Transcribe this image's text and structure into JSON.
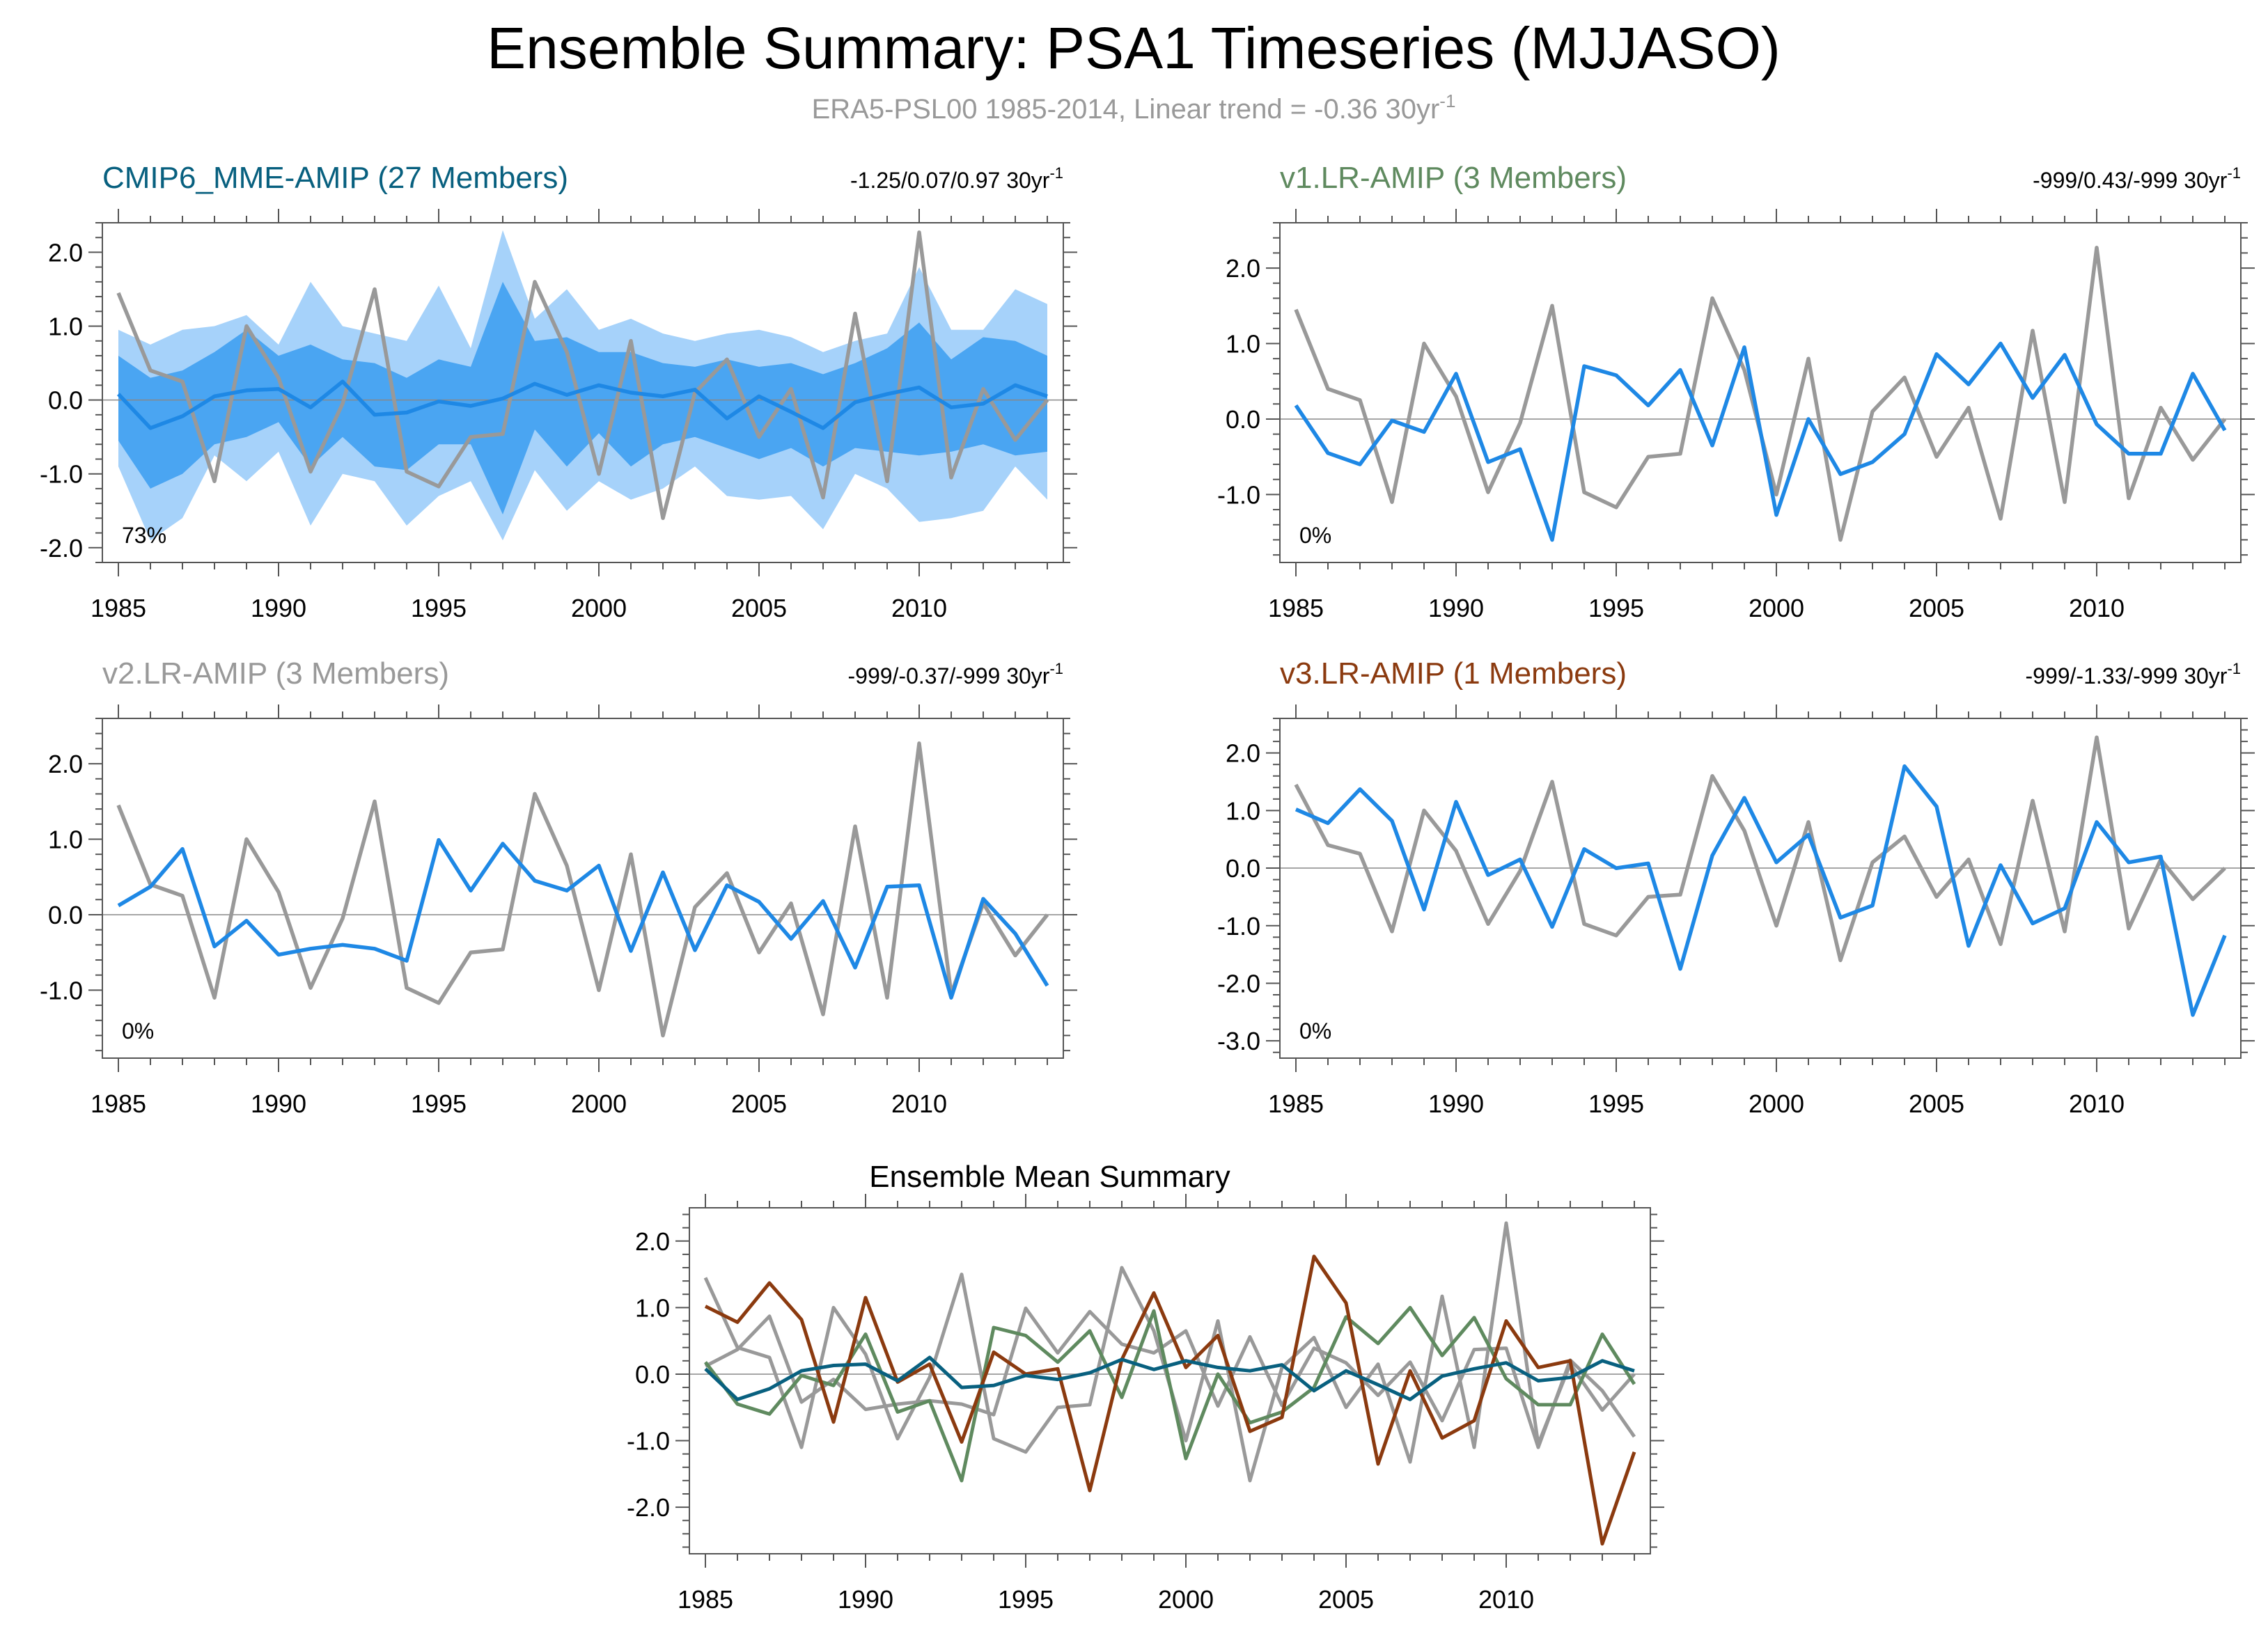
{
  "title": "Ensemble Summary: PSA1 Timeseries (MJJASO)",
  "subtitle": {
    "main": "ERA5-PSL00 1985-2014, Linear trend = -0.36 30yr",
    "sup": "-1"
  },
  "colors": {
    "obs": "#999999",
    "model": "#1e88e5",
    "mme": "#08607f",
    "v1": "#5f8a5f",
    "v2": "#999999",
    "v3": "#8b3a0f",
    "band_outer": "#a6d2fa",
    "band_inner": "#4aa5f2",
    "axis": "#555555",
    "text": "#000000"
  },
  "chart_data": [
    {
      "id": "cmip6",
      "type": "line",
      "title": "CMIP6_MME-AMIP (27 Members)",
      "title_color": "#08607f",
      "trend_text": "-1.25/0.07/0.97 30yr",
      "trend_sup": "-1",
      "pct_label": "73%",
      "ylim": [
        -2.2,
        2.4
      ],
      "yticks": [
        -2.0,
        -1.0,
        0.0,
        1.0,
        2.0
      ],
      "xticks": [
        1985,
        1990,
        1995,
        2000,
        2005,
        2010
      ],
      "xlim": [
        1984.5,
        2014.5
      ],
      "x": [
        1985,
        1986,
        1987,
        1988,
        1989,
        1990,
        1991,
        1992,
        1993,
        1994,
        1995,
        1996,
        1997,
        1998,
        1999,
        2000,
        2001,
        2002,
        2003,
        2004,
        2005,
        2006,
        2007,
        2008,
        2009,
        2010,
        2011,
        2012,
        2013,
        2014
      ],
      "band_outer_upper": [
        0.95,
        0.75,
        0.95,
        1.0,
        1.15,
        0.75,
        1.6,
        1.0,
        0.9,
        0.8,
        1.55,
        0.7,
        2.3,
        1.1,
        1.5,
        0.95,
        1.1,
        0.9,
        0.8,
        0.9,
        0.95,
        0.85,
        0.65,
        0.8,
        0.9,
        1.8,
        0.95,
        0.95,
        1.5,
        1.3
      ],
      "band_outer_lower": [
        -0.9,
        -1.9,
        -1.6,
        -0.75,
        -1.1,
        -0.7,
        -1.7,
        -1.0,
        -1.1,
        -1.7,
        -1.3,
        -1.1,
        -1.9,
        -0.95,
        -1.5,
        -1.1,
        -1.35,
        -1.2,
        -0.9,
        -1.3,
        -1.35,
        -1.3,
        -1.75,
        -1.0,
        -1.2,
        -1.65,
        -1.6,
        -1.5,
        -0.9,
        -1.35
      ],
      "band_inner_upper": [
        0.6,
        0.3,
        0.4,
        0.65,
        0.95,
        0.6,
        0.75,
        0.55,
        0.5,
        0.3,
        0.55,
        0.45,
        1.6,
        0.8,
        0.85,
        0.65,
        0.65,
        0.5,
        0.45,
        0.55,
        0.45,
        0.5,
        0.35,
        0.5,
        0.7,
        1.05,
        0.55,
        0.85,
        0.8,
        0.6
      ],
      "band_inner_lower": [
        -0.55,
        -1.2,
        -1.0,
        -0.6,
        -0.5,
        -0.3,
        -0.9,
        -0.5,
        -0.9,
        -0.95,
        -0.6,
        -0.6,
        -1.55,
        -0.4,
        -0.9,
        -0.45,
        -0.9,
        -0.6,
        -0.5,
        -0.65,
        -0.8,
        -0.65,
        -0.9,
        -0.65,
        -0.7,
        -0.75,
        -0.7,
        -0.6,
        -0.75,
        -0.7
      ],
      "series": [
        {
          "name": "ERA5-PSL00",
          "color": "#999999",
          "values": [
            1.45,
            0.4,
            0.25,
            -1.1,
            1.0,
            0.3,
            -0.97,
            -0.05,
            1.5,
            -0.97,
            -1.17,
            -0.5,
            -0.46,
            1.6,
            0.65,
            -1.0,
            0.8,
            -1.6,
            0.1,
            0.55,
            -0.5,
            0.15,
            -1.32,
            1.17,
            -1.1,
            2.27,
            -1.05,
            0.15,
            -0.54,
            0.0
          ]
        },
        {
          "name": "CMIP6_MME-AMIP",
          "color": "#1e88e5",
          "values": [
            0.08,
            -0.38,
            -0.22,
            0.05,
            0.13,
            0.15,
            -0.1,
            0.25,
            -0.2,
            -0.17,
            -0.02,
            -0.08,
            0.02,
            0.22,
            0.07,
            0.2,
            0.1,
            0.05,
            0.14,
            -0.25,
            0.05,
            -0.16,
            -0.38,
            -0.03,
            0.08,
            0.17,
            -0.1,
            -0.05,
            0.2,
            0.05
          ]
        }
      ]
    },
    {
      "id": "v1",
      "type": "line",
      "title": "v1.LR-AMIP (3 Members)",
      "title_color": "#5f8a5f",
      "trend_text": "-999/0.43/-999 30yr",
      "trend_sup": "-1",
      "pct_label": "0%",
      "ylim": [
        -1.9,
        2.6
      ],
      "yticks": [
        -1.0,
        0.0,
        1.0,
        2.0
      ],
      "xticks": [
        1985,
        1990,
        1995,
        2000,
        2005,
        2010
      ],
      "xlim": [
        1984.5,
        2014.5
      ],
      "x": [
        1985,
        1986,
        1987,
        1988,
        1989,
        1990,
        1991,
        1992,
        1993,
        1994,
        1995,
        1996,
        1997,
        1998,
        1999,
        2000,
        2001,
        2002,
        2003,
        2004,
        2005,
        2006,
        2007,
        2008,
        2009,
        2010,
        2011,
        2012,
        2013,
        2014
      ],
      "series": [
        {
          "name": "ERA5-PSL00",
          "color": "#999999",
          "values": [
            1.45,
            0.4,
            0.25,
            -1.1,
            1.0,
            0.3,
            -0.97,
            -0.05,
            1.5,
            -0.97,
            -1.17,
            -0.5,
            -0.46,
            1.6,
            0.65,
            -1.0,
            0.8,
            -1.6,
            0.1,
            0.55,
            -0.5,
            0.15,
            -1.32,
            1.17,
            -1.1,
            2.27,
            -1.05,
            0.15,
            -0.54,
            0.0
          ]
        },
        {
          "name": "v1.LR-AMIP",
          "color": "#1e88e5",
          "values": [
            0.18,
            -0.45,
            -0.6,
            -0.02,
            -0.17,
            0.6,
            -0.57,
            -0.4,
            -1.6,
            0.7,
            0.58,
            0.18,
            0.65,
            -0.35,
            0.95,
            -1.27,
            0.0,
            -0.73,
            -0.57,
            -0.2,
            0.86,
            0.46,
            1.0,
            0.28,
            0.85,
            -0.07,
            -0.46,
            -0.46,
            0.6,
            -0.15
          ]
        }
      ]
    },
    {
      "id": "v2",
      "type": "line",
      "title": "v2.LR-AMIP (3 Members)",
      "title_color": "#999999",
      "trend_text": "-999/-0.37/-999 30yr",
      "trend_sup": "-1",
      "pct_label": "0%",
      "ylim": [
        -1.9,
        2.6
      ],
      "yticks": [
        -1.0,
        0.0,
        1.0,
        2.0
      ],
      "xticks": [
        1985,
        1990,
        1995,
        2000,
        2005,
        2010
      ],
      "xlim": [
        1984.5,
        2014.5
      ],
      "x": [
        1985,
        1986,
        1987,
        1988,
        1989,
        1990,
        1991,
        1992,
        1993,
        1994,
        1995,
        1996,
        1997,
        1998,
        1999,
        2000,
        2001,
        2002,
        2003,
        2004,
        2005,
        2006,
        2007,
        2008,
        2009,
        2010,
        2011,
        2012,
        2013,
        2014
      ],
      "series": [
        {
          "name": "ERA5-PSL00",
          "color": "#999999",
          "values": [
            1.45,
            0.4,
            0.25,
            -1.1,
            1.0,
            0.3,
            -0.97,
            -0.05,
            1.5,
            -0.97,
            -1.17,
            -0.5,
            -0.46,
            1.6,
            0.65,
            -1.0,
            0.8,
            -1.6,
            0.1,
            0.55,
            -0.5,
            0.15,
            -1.32,
            1.17,
            -1.1,
            2.27,
            -1.05,
            0.15,
            -0.54,
            0.0
          ]
        },
        {
          "name": "v2.LR-AMIP",
          "color": "#1e88e5",
          "values": [
            0.12,
            0.37,
            0.87,
            -0.42,
            -0.08,
            -0.53,
            -0.45,
            -0.4,
            -0.45,
            -0.61,
            0.99,
            0.32,
            0.94,
            0.45,
            0.32,
            0.65,
            -0.48,
            0.56,
            -0.47,
            0.39,
            0.17,
            -0.32,
            0.18,
            -0.7,
            0.37,
            0.39,
            -1.1,
            0.21,
            -0.25,
            -0.94
          ]
        }
      ]
    },
    {
      "id": "v3",
      "type": "line",
      "title": "v3.LR-AMIP (1 Members)",
      "title_color": "#8b3a0f",
      "trend_text": "-999/-1.33/-999 30yr",
      "trend_sup": "-1",
      "pct_label": "0%",
      "ylim": [
        -3.3,
        2.6
      ],
      "yticks": [
        -3.0,
        -2.0,
        -1.0,
        0.0,
        1.0,
        2.0
      ],
      "xticks": [
        1985,
        1990,
        1995,
        2000,
        2005,
        2010
      ],
      "xlim": [
        1984.5,
        2014.5
      ],
      "x": [
        1985,
        1986,
        1987,
        1988,
        1989,
        1990,
        1991,
        1992,
        1993,
        1994,
        1995,
        1996,
        1997,
        1998,
        1999,
        2000,
        2001,
        2002,
        2003,
        2004,
        2005,
        2006,
        2007,
        2008,
        2009,
        2010,
        2011,
        2012,
        2013,
        2014
      ],
      "series": [
        {
          "name": "ERA5-PSL00",
          "color": "#999999",
          "values": [
            1.45,
            0.4,
            0.25,
            -1.1,
            1.0,
            0.3,
            -0.97,
            -0.05,
            1.5,
            -0.97,
            -1.17,
            -0.5,
            -0.46,
            1.6,
            0.65,
            -1.0,
            0.8,
            -1.6,
            0.1,
            0.55,
            -0.5,
            0.15,
            -1.32,
            1.17,
            -1.1,
            2.27,
            -1.05,
            0.15,
            -0.54,
            0.0
          ]
        },
        {
          "name": "v3.LR-AMIP",
          "color": "#1e88e5",
          "values": [
            1.02,
            0.78,
            1.37,
            0.82,
            -0.72,
            1.15,
            -0.12,
            0.15,
            -1.02,
            0.33,
            0.0,
            0.08,
            -1.75,
            0.22,
            1.22,
            0.1,
            0.58,
            -0.86,
            -0.65,
            1.77,
            1.07,
            -1.35,
            0.05,
            -0.96,
            -0.7,
            0.8,
            0.1,
            0.2,
            -2.55,
            -1.17
          ]
        }
      ]
    },
    {
      "id": "summary",
      "type": "line",
      "title": "Ensemble Mean Summary",
      "title_color": "#000000",
      "ylim": [
        -2.7,
        2.5
      ],
      "yticks": [
        -2.0,
        -1.0,
        0.0,
        1.0,
        2.0
      ],
      "xticks": [
        1985,
        1990,
        1995,
        2000,
        2005,
        2010
      ],
      "xlim": [
        1984.5,
        2014.5
      ],
      "x": [
        1985,
        1986,
        1987,
        1988,
        1989,
        1990,
        1991,
        1992,
        1993,
        1994,
        1995,
        1996,
        1997,
        1998,
        1999,
        2000,
        2001,
        2002,
        2003,
        2004,
        2005,
        2006,
        2007,
        2008,
        2009,
        2010,
        2011,
        2012,
        2013,
        2014
      ],
      "series": [
        {
          "name": "ERA5-PSL00",
          "color": "#999999",
          "values": [
            1.45,
            0.4,
            0.25,
            -1.1,
            1.0,
            0.3,
            -0.97,
            -0.05,
            1.5,
            -0.97,
            -1.17,
            -0.5,
            -0.46,
            1.6,
            0.65,
            -1.0,
            0.8,
            -1.6,
            0.1,
            0.55,
            -0.5,
            0.15,
            -1.32,
            1.17,
            -1.1,
            2.27,
            -1.05,
            0.15,
            -0.54,
            0.0
          ]
        },
        {
          "name": "v2.LR-AMIP",
          "color": "#999999",
          "values": [
            0.12,
            0.37,
            0.87,
            -0.42,
            -0.08,
            -0.53,
            -0.45,
            -0.4,
            -0.45,
            -0.61,
            0.99,
            0.32,
            0.94,
            0.45,
            0.32,
            0.65,
            -0.48,
            0.56,
            -0.47,
            0.39,
            0.17,
            -0.32,
            0.18,
            -0.7,
            0.37,
            0.39,
            -1.1,
            0.21,
            -0.25,
            -0.94
          ]
        },
        {
          "name": "v1.LR-AMIP",
          "color": "#5f8a5f",
          "values": [
            0.18,
            -0.45,
            -0.6,
            -0.02,
            -0.17,
            0.6,
            -0.57,
            -0.4,
            -1.6,
            0.7,
            0.58,
            0.18,
            0.65,
            -0.35,
            0.95,
            -1.27,
            0.0,
            -0.73,
            -0.57,
            -0.2,
            0.86,
            0.46,
            1.0,
            0.28,
            0.85,
            -0.07,
            -0.46,
            -0.46,
            0.6,
            -0.15
          ]
        },
        {
          "name": "v3.LR-AMIP",
          "color": "#8b3a0f",
          "values": [
            1.02,
            0.78,
            1.37,
            0.82,
            -0.72,
            1.15,
            -0.12,
            0.15,
            -1.02,
            0.33,
            0.0,
            0.08,
            -1.75,
            0.22,
            1.22,
            0.1,
            0.58,
            -0.86,
            -0.65,
            1.77,
            1.07,
            -1.35,
            0.05,
            -0.96,
            -0.7,
            0.8,
            0.1,
            0.2,
            -2.55,
            -1.17
          ]
        },
        {
          "name": "CMIP6_MME-AMIP",
          "color": "#08607f",
          "values": [
            0.08,
            -0.38,
            -0.22,
            0.05,
            0.13,
            0.15,
            -0.1,
            0.25,
            -0.2,
            -0.17,
            -0.02,
            -0.08,
            0.02,
            0.22,
            0.07,
            0.2,
            0.1,
            0.05,
            0.14,
            -0.25,
            0.05,
            -0.16,
            -0.38,
            -0.03,
            0.08,
            0.17,
            -0.1,
            -0.05,
            0.2,
            0.05
          ]
        }
      ]
    }
  ]
}
